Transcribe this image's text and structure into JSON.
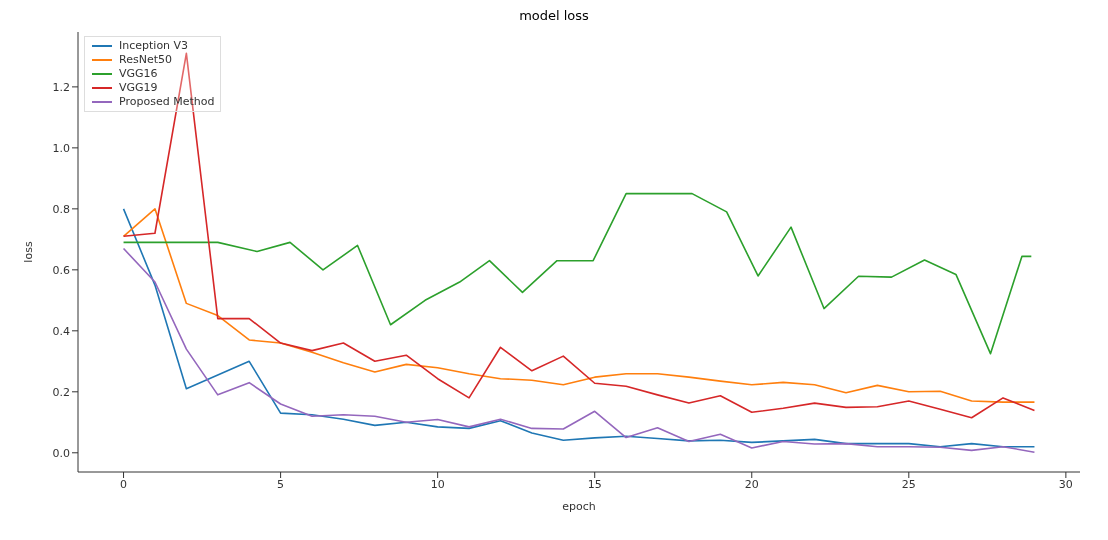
{
  "chart_data": {
    "type": "line",
    "title": "model loss",
    "xlabel": "epoch",
    "ylabel": "loss",
    "x": [
      0,
      1,
      2,
      3,
      4,
      5,
      6,
      7,
      8,
      9,
      10,
      11,
      12,
      13,
      14,
      15,
      16,
      17,
      18,
      19,
      20,
      21,
      22,
      23,
      24,
      25,
      26,
      27,
      28,
      29
    ],
    "series": [
      {
        "name": "Inception V3",
        "color": "#1f77b4",
        "values": [
          0.8,
          0.55,
          0.21,
          0.255,
          0.3,
          0.13,
          0.125,
          0.11,
          0.09,
          0.1,
          0.085,
          0.08,
          0.105,
          0.065,
          0.041,
          0.049,
          0.054,
          0.047,
          0.039,
          0.041,
          0.034,
          0.039,
          0.044,
          0.03,
          0.03,
          0.03,
          0.02,
          0.03,
          0.02,
          0.02
        ]
      },
      {
        "name": "ResNet50",
        "color": "#ff7f0e",
        "values": [
          0.71,
          0.8,
          0.49,
          0.45,
          0.37,
          0.36,
          0.33,
          0.295,
          0.265,
          0.29,
          0.279,
          0.259,
          0.243,
          0.238,
          0.223,
          0.248,
          0.259,
          0.259,
          0.248,
          0.235,
          0.223,
          0.231,
          0.223,
          0.197,
          0.221,
          0.2,
          0.202,
          0.17,
          0.166,
          0.166
        ]
      },
      {
        "name": "VGG16",
        "color": "#2ca02c",
        "x": [
          0,
          3,
          4.25,
          5.3,
          6.35,
          7.45,
          8.5,
          9.6,
          10.7,
          11.65,
          12.7,
          13.8,
          14.95,
          16,
          18.1,
          19.2,
          20.2,
          21.25,
          22.3,
          23.4,
          24.45,
          25.5,
          26.5,
          27.6,
          28.6,
          28.9
        ],
        "values": [
          0.69,
          0.69,
          0.66,
          0.69,
          0.6,
          0.68,
          0.42,
          0.5,
          0.56,
          0.63,
          0.526,
          0.63,
          0.63,
          0.85,
          0.85,
          0.79,
          0.58,
          0.74,
          0.473,
          0.579,
          0.576,
          0.632,
          0.585,
          0.325,
          0.644,
          0.644
        ]
      },
      {
        "name": "VGG19",
        "color": "#d62728",
        "values": [
          0.71,
          0.72,
          1.31,
          0.44,
          0.44,
          0.36,
          0.335,
          0.36,
          0.3,
          0.32,
          0.243,
          0.18,
          0.346,
          0.269,
          0.317,
          0.228,
          0.218,
          0.19,
          0.163,
          0.187,
          0.133,
          0.146,
          0.163,
          0.149,
          0.151,
          0.17,
          0.143,
          0.115,
          0.18,
          0.139
        ]
      },
      {
        "name": "Proposed Method",
        "color": "#9467bd",
        "values": [
          0.67,
          0.56,
          0.34,
          0.19,
          0.23,
          0.16,
          0.12,
          0.125,
          0.12,
          0.1,
          0.109,
          0.085,
          0.11,
          0.08,
          0.078,
          0.136,
          0.05,
          0.082,
          0.037,
          0.061,
          0.016,
          0.037,
          0.029,
          0.03,
          0.02,
          0.02,
          0.018,
          0.008,
          0.02,
          0.002
        ]
      }
    ],
    "xlim": [
      -1.45,
      30.45
    ],
    "xticks": [
      0,
      5,
      10,
      15,
      20,
      25,
      30
    ],
    "ylim": [
      -0.063,
      1.38
    ],
    "yticks": [
      {
        "value": 0,
        "label": "0.0"
      },
      {
        "value": 0.2,
        "label": "0.2"
      },
      {
        "value": 0.4,
        "label": "0.4"
      },
      {
        "value": 0.6,
        "label": "0.6"
      },
      {
        "value": 0.8,
        "label": "0.8"
      },
      {
        "value": 1,
        "label": "1.0"
      },
      {
        "value": 1.2,
        "label": "1.2"
      }
    ],
    "legend": "top left",
    "grid": false,
    "line_style": "solid",
    "marker": "none"
  }
}
